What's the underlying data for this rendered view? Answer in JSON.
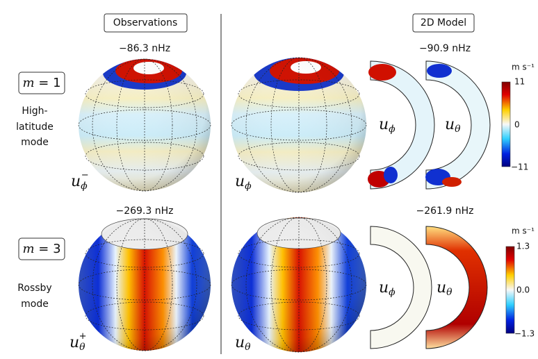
{
  "headers": {
    "observations": "Observations",
    "model": "2D Model"
  },
  "rows": [
    {
      "mode": {
        "symbol": "m",
        "eq": " = ",
        "value": "1"
      },
      "description": [
        "High-",
        "latitude",
        "mode"
      ],
      "obs_frequency": "−86.3 nHz",
      "model_frequency": "−90.9 nHz",
      "obs_component": {
        "symbol": "u",
        "sub": "ϕ",
        "sup": "−"
      },
      "model_component": {
        "symbol": "u",
        "sub": "ϕ"
      },
      "shell_components": [
        {
          "symbol": "u",
          "sub": "ϕ"
        },
        {
          "symbol": "u",
          "sub": "θ"
        }
      ],
      "colorbar": {
        "unit": "m s⁻¹",
        "ticks": [
          "11",
          "0",
          "−11"
        ]
      }
    },
    {
      "mode": {
        "symbol": "m",
        "eq": " = ",
        "value": "3"
      },
      "description": [
        "Rossby",
        "mode"
      ],
      "obs_frequency": "−269.3 nHz",
      "model_frequency": "−261.9 nHz",
      "obs_component": {
        "symbol": "u",
        "sub": "θ",
        "sup": "+"
      },
      "model_component": {
        "symbol": "u",
        "sub": "θ"
      },
      "shell_components": [
        {
          "symbol": "u",
          "sub": "ϕ"
        },
        {
          "symbol": "u",
          "sub": "θ"
        }
      ],
      "colorbar": {
        "unit": "m s⁻¹",
        "ticks": [
          "1.3",
          "0.0",
          "−1.3"
        ]
      }
    }
  ]
}
